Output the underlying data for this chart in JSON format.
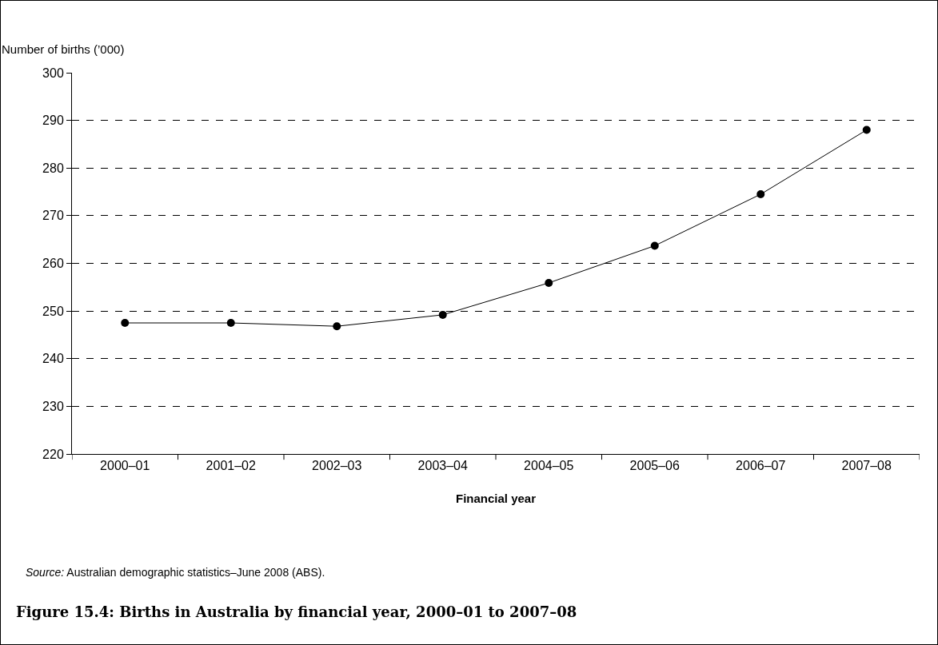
{
  "chart_data": {
    "type": "line",
    "title": "Figure 15.4: Births in Australia by financial year, 2000–01 to 2007–08",
    "xlabel": "Financial year",
    "ylabel": "Number of births (’000)",
    "categories": [
      "2000–01",
      "2001–02",
      "2002–03",
      "2003–04",
      "2004–05",
      "2005–06",
      "2006–07",
      "2007–08"
    ],
    "series": [
      {
        "color": "#000000",
        "values": [
          247.5,
          247.5,
          246.8,
          249.2,
          255.9,
          263.7,
          274.5,
          288.0
        ]
      }
    ],
    "ylim": [
      220,
      300
    ],
    "yticks": [
      220,
      230,
      240,
      250,
      260,
      270,
      280,
      290,
      300
    ],
    "grid": "y",
    "legend": false,
    "marker": "circle",
    "line_style": "solid",
    "annotations": [
      "Source: Australian demographic statistics–June 2008 (ABS)."
    ]
  }
}
